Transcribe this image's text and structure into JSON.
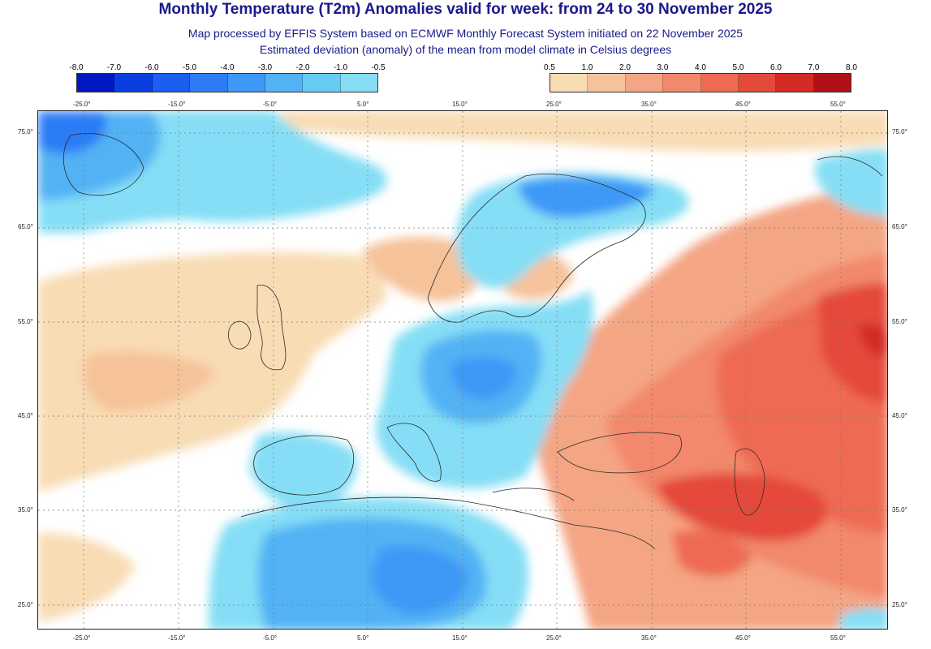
{
  "title": "Monthly Temperature (T2m) Anomalies valid for week: from 24 to 30 November 2025",
  "subtitle_1": "Map processed by EFFIS System based on ECMWF Monthly Forecast System initiated on 22 November 2025",
  "subtitle_2": "Estimated deviation (anomaly) of the mean from model climate in Celsius degrees",
  "legend_negative": {
    "ticks": [
      "-8.0",
      "-7.0",
      "-6.0",
      "-5.0",
      "-4.0",
      "-3.0",
      "-2.0",
      "-1.0",
      "-0.5"
    ],
    "colors": [
      "#0018c0",
      "#0a3ee0",
      "#1a5ef2",
      "#2c7cf6",
      "#3e98f6",
      "#52b2f4",
      "#68cbf3",
      "#85def5"
    ]
  },
  "legend_positive": {
    "ticks": [
      "0.5",
      "1.0",
      "2.0",
      "3.0",
      "4.0",
      "5.0",
      "6.0",
      "7.0",
      "8.0"
    ],
    "colors": [
      "#f8dcb4",
      "#f6c29a",
      "#f4a584",
      "#f2886c",
      "#ee6a52",
      "#e44a3a",
      "#d42a26",
      "#b01016"
    ]
  },
  "colors": {
    "ocean_neutral": "#ffffff",
    "coastline": "#2a2a2a",
    "grid": "#7a7a7a"
  },
  "axes": {
    "lon_labels": [
      "-25.0°",
      "-15.0°",
      "-5.0°",
      "5.0°",
      "15.0°",
      "25.0°",
      "35.0°",
      "45.0°",
      "55.0°"
    ],
    "lat_labels": [
      "75.0°",
      "65.0°",
      "55.0°",
      "45.0°",
      "35.0°",
      "25.0°"
    ]
  }
}
